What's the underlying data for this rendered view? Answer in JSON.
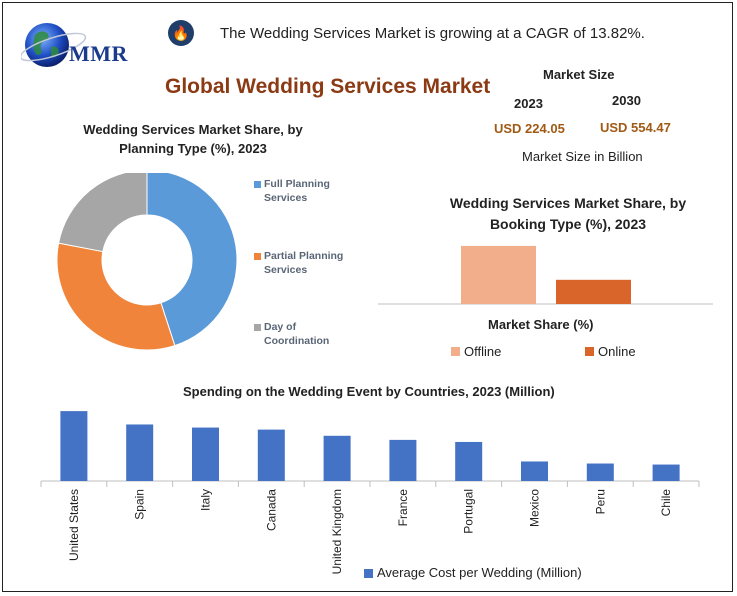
{
  "logo": {
    "text": "MMR"
  },
  "header": {
    "icon": "flame-icon",
    "cagr_text": "The Wedding Services Market is growing at a CAGR of 13.82%.",
    "title": "Global Wedding Services Market"
  },
  "market_size": {
    "title": "Market Size",
    "year_2023": "2023",
    "year_2030": "2030",
    "value_2023": "USD 224.05",
    "value_2030": "USD 554.47",
    "unit": "Market Size in Billion"
  },
  "colors": {
    "blue": "#5a9ad8",
    "orange": "#f0843a",
    "gray": "#a6a6a6",
    "salmon": "#f2ad8b",
    "dark_orange": "#d9652a",
    "bar_blue": "#4472c4",
    "title_brown": "#8b3a14",
    "value_brown": "#a05a14"
  },
  "chart_data": [
    {
      "type": "pie",
      "title": "Wedding Services Market Share, by Planning Type (%), 2023",
      "title_lines": [
        "Wedding Services Market Share, by",
        "Planning Type (%), 2023"
      ],
      "categories": [
        "Full Planning Services",
        "Partial Planning Services",
        "Day of Coordination"
      ],
      "legend_lines": [
        [
          "Full Planning",
          "Services"
        ],
        [
          "Partial Planning",
          "Services"
        ],
        [
          "Day of",
          "Coordination"
        ]
      ],
      "values": [
        45,
        33,
        22
      ],
      "colors": [
        "#5a9ad8",
        "#f0843a",
        "#a6a6a6"
      ],
      "donut": true,
      "legend": "right"
    },
    {
      "type": "bar",
      "title": "Wedding Services Market Share, by Booking Type (%), 2023",
      "title_lines": [
        "Wedding Services Market Share, by",
        "Booking Type (%), 2023"
      ],
      "xlabel": "Market Share (%)",
      "categories": [
        "Offline",
        "Online"
      ],
      "values": [
        60,
        25
      ],
      "colors": [
        "#f2ad8b",
        "#d9652a"
      ],
      "legend": "bottom"
    },
    {
      "type": "bar",
      "title": "Spending on the Wedding Event by Countries, 2023 (Million)",
      "categories": [
        "United States",
        "Spain",
        "Italy",
        "Canada",
        "United Kingdom",
        "France",
        "Portugal",
        "Mexico",
        "Peru",
        "Chile"
      ],
      "series": [
        {
          "name": "Average Cost per Wedding (Million)",
          "values": [
            34,
            27.5,
            26,
            25,
            22,
            20,
            19,
            9.5,
            8.5,
            8
          ]
        }
      ],
      "ylim": [
        0,
        36
      ],
      "color": "#4472c4",
      "legend": "bottom"
    }
  ]
}
